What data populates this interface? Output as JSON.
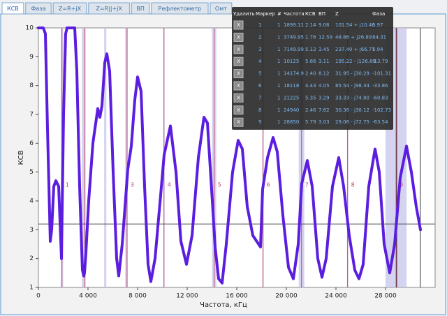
{
  "tabs": [
    "КСВ",
    "Фаза",
    "Z=R+jX",
    "Z=R||+jX",
    "ВП",
    "Рефлектометр",
    "Омт"
  ],
  "chart_data": {
    "type": "line",
    "xlabel": "Частота, кГц",
    "ylabel": "КСВ",
    "x": [
      0,
      394,
      563,
      732,
      958,
      1070,
      1240,
      1408,
      1634,
      1859,
      2028,
      2197,
      2310,
      2930,
      3099,
      3324,
      3549,
      3662,
      3718,
      3831,
      4056,
      4394,
      4789,
      4958,
      5127,
      5352,
      5521,
      5746,
      6028,
      6310,
      6479,
      6761,
      7211,
      7493,
      7775,
      8000,
      8282,
      8563,
      8845,
      9070,
      9408,
      9859,
      10141,
      10648,
      11099,
      11493,
      11944,
      12394,
      12901,
      13352,
      13634,
      14028,
      14254,
      14535,
      14817,
      15155,
      15662,
      16113,
      16451,
      16845,
      17296,
      17916,
      18084,
      18478,
      18929,
      19267,
      19718,
      20168,
      20563,
      20957,
      21239,
      21690,
      22085,
      22536,
      22874,
      23212,
      23719,
      24226,
      24620,
      25071,
      25521,
      25859,
      26197,
      26648,
      27155,
      27493,
      27887,
      28338,
      28732,
      29183,
      29690,
      30085,
      30479,
      30817
    ],
    "series": [
      {
        "name": "КСВ",
        "color": "#5b1ee0",
        "values": [
          10,
          10,
          9.8,
          6.5,
          2.6,
          3.0,
          4.5,
          4.7,
          4.5,
          2.0,
          7.0,
          9.8,
          10,
          10,
          8.5,
          4.5,
          1.6,
          1.4,
          1.5,
          2.2,
          4.0,
          6.0,
          7.2,
          6.9,
          7.3,
          8.8,
          9.1,
          8.5,
          5.0,
          2.0,
          1.4,
          2.5,
          5.1,
          5.9,
          7.5,
          8.3,
          7.8,
          4.5,
          1.8,
          1.2,
          2.0,
          4.2,
          5.6,
          6.6,
          5.0,
          2.6,
          1.8,
          2.8,
          5.5,
          6.9,
          6.7,
          4.0,
          2.4,
          1.3,
          1.15,
          2.5,
          5.0,
          6.1,
          5.8,
          3.8,
          2.8,
          2.4,
          4.4,
          5.5,
          6.2,
          5.7,
          3.5,
          1.7,
          1.3,
          2.5,
          4.6,
          5.4,
          4.5,
          2.0,
          1.35,
          2.0,
          4.5,
          5.5,
          4.5,
          2.8,
          1.6,
          1.3,
          1.8,
          4.5,
          5.8,
          5.0,
          2.5,
          1.5,
          2.5,
          4.8,
          5.9,
          5.0,
          3.8,
          3.0
        ]
      }
    ],
    "xlim": [
      0,
      32000
    ],
    "ylim": [
      1,
      10
    ],
    "xticks": [
      {
        "value": 0,
        "label": "0"
      },
      {
        "value": 4000,
        "label": "4 000"
      },
      {
        "value": 8000,
        "label": "8 000"
      },
      {
        "value": 12000,
        "label": "12 000"
      },
      {
        "value": 16000,
        "label": "16 000"
      },
      {
        "value": 20000,
        "label": "20 000"
      },
      {
        "value": 24000,
        "label": "24 000"
      },
      {
        "value": 28000,
        "label": "28 000"
      }
    ],
    "yticks": [
      1,
      2,
      3,
      4,
      5,
      6,
      7,
      8,
      9,
      10
    ],
    "threshold": 3.2,
    "vlines": [
      28900,
      30800
    ],
    "bands": [
      [
        1810,
        2000
      ],
      [
        3500,
        3800
      ],
      [
        5300,
        5480
      ],
      [
        7000,
        7200
      ],
      [
        10100,
        10150
      ],
      [
        14000,
        14350
      ],
      [
        18068,
        18168
      ],
      [
        21000,
        21450
      ],
      [
        24890,
        24990
      ],
      [
        28000,
        29700
      ]
    ],
    "band_color": "#c9c9ec",
    "marker_color": "#c2456a",
    "markers": [
      {
        "label": "1",
        "x": 1899.11
      },
      {
        "label": "2",
        "x": 3749.95
      },
      {
        "label": "3",
        "x": 7149.99
      },
      {
        "label": "4",
        "x": 10125
      },
      {
        "label": "5",
        "x": 14174.9
      },
      {
        "label": "6",
        "x": 18118
      },
      {
        "label": "7",
        "x": 21225
      },
      {
        "label": "8",
        "x": 24940
      },
      {
        "label": "9",
        "x": 28850
      }
    ]
  },
  "marker_table": {
    "columns": [
      "Удалить",
      "Маркер",
      "#",
      "Частота",
      "КСВ",
      "ВП",
      "Z",
      "Фаза"
    ],
    "rows": [
      [
        "X",
        "1",
        "1",
        "1899.11",
        "2.14",
        "9.06",
        "101.54 + j10.46",
        "5.97"
      ],
      [
        "X",
        "2",
        "1",
        "3749.95",
        "1.76",
        "12.59",
        "48.86 + j26.89",
        "84.31"
      ],
      [
        "X",
        "3",
        "1",
        "7149.99",
        "5.12",
        "3.45",
        "237.40 + j66.77",
        "5.94"
      ],
      [
        "X",
        "4",
        "1",
        "10125",
        "5.66",
        "3.11",
        "195.22 - j126.89",
        "-13.79"
      ],
      [
        "X",
        "5",
        "1",
        "14174.9",
        "2.40",
        "8.12",
        "31.95 - j30.29",
        "-101.31"
      ],
      [
        "X",
        "6",
        "1",
        "18118",
        "4.43",
        "4.05",
        "85.54 - j98.34",
        "-33.86"
      ],
      [
        "X",
        "7",
        "1",
        "21225",
        "5.35",
        "3.29",
        "33.33 - j74.80",
        "-60.83"
      ],
      [
        "X",
        "8",
        "1",
        "24940",
        "2.46",
        "7.62",
        "30.36 - j30.12",
        "-102.73"
      ],
      [
        "X",
        "9",
        "1",
        "28850",
        "5.79",
        "3.03",
        "29.06 - j72.75",
        "-63.54"
      ]
    ]
  }
}
